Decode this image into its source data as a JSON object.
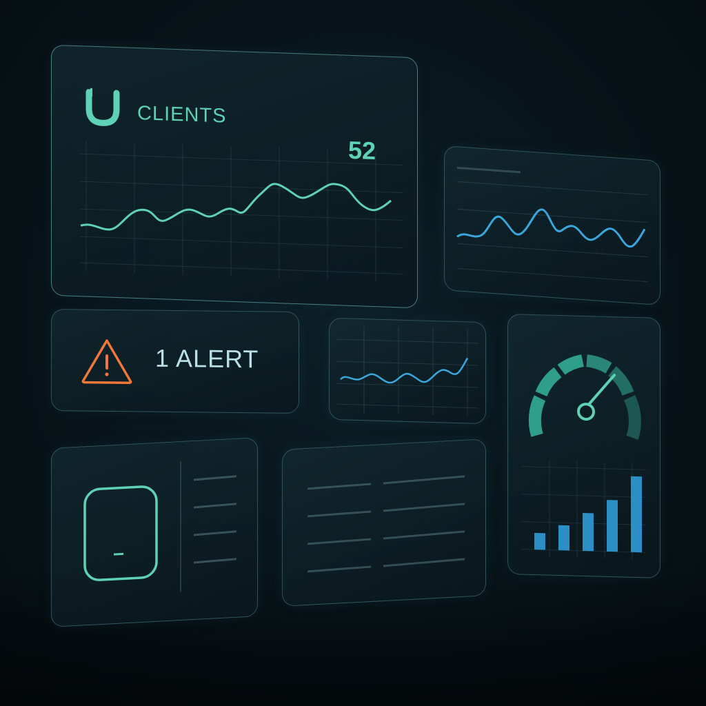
{
  "clients_card": {
    "label": "CLIENTS",
    "count": "52",
    "logo_icon": "ubiquiti-u-icon",
    "line_color": "#5fd1b5"
  },
  "alert_card": {
    "text": "1 ALERT",
    "icon": "warning-triangle-icon",
    "color": "#f0783a"
  },
  "traffic_card": {
    "line_color": "#3aa6dc"
  },
  "mini_trend_card": {
    "line_color": "#3aa6dc"
  },
  "gauge_card": {
    "gauge_icon": "speedometer-icon",
    "accent": "#2f9e8a",
    "bar_color": "#2b8fc6",
    "bar_levels": [
      0.22,
      0.33,
      0.5,
      0.68,
      1.0
    ]
  },
  "device_card": {
    "icon": "access-point-device-icon",
    "color": "#5fd1b5"
  },
  "list_card": {}
}
